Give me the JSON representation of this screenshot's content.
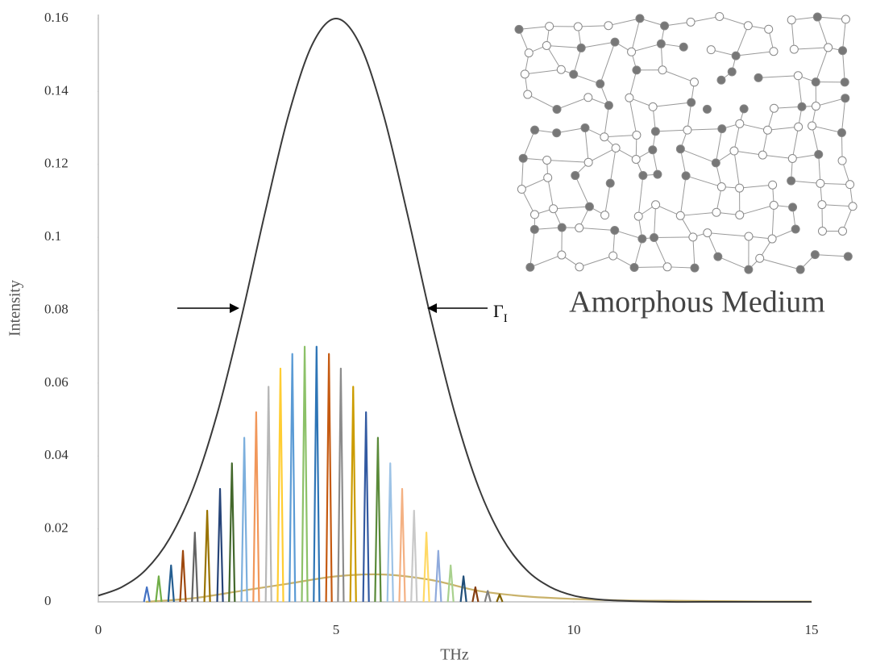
{
  "chart_data": {
    "type": "line",
    "x_label": "THz",
    "y_label": "Intensity",
    "xlim": [
      0,
      15
    ],
    "ylim": [
      0,
      0.16
    ],
    "xticks": [
      0,
      5,
      10,
      15
    ],
    "yticks": [
      0,
      0.02,
      0.04,
      0.06,
      0.08,
      0.1,
      0.12,
      0.14,
      0.16
    ],
    "grid": false,
    "annotation_label": "Γ",
    "annotation_subscript": "I",
    "inset_label": "Amorphous Medium",
    "series": [
      {
        "color": "#3a3a3a",
        "smooth": true,
        "x": [
          0,
          0.5,
          1,
          1.5,
          2,
          2.5,
          3,
          3.5,
          4,
          4.5,
          5,
          5.5,
          6,
          6.5,
          7,
          7.5,
          8,
          8.5,
          9,
          9.5,
          10,
          10.5,
          11,
          12,
          13,
          14,
          15
        ],
        "values": [
          0.0017,
          0.0041,
          0.0088,
          0.0174,
          0.0313,
          0.0516,
          0.0775,
          0.1064,
          0.1335,
          0.1529,
          0.16,
          0.1529,
          0.1335,
          0.1064,
          0.0775,
          0.0516,
          0.0313,
          0.0174,
          0.0088,
          0.0041,
          0.0017,
          0.0007,
          0.0003,
          0,
          0,
          0,
          0
        ]
      },
      {
        "color": "#c9b26b",
        "smooth": true,
        "x": [
          1,
          2,
          3,
          4,
          5,
          6,
          7,
          8,
          9,
          10,
          11,
          12,
          13,
          14,
          15
        ],
        "values": [
          0,
          0.001,
          0.003,
          0.005,
          0.007,
          0.0075,
          0.006,
          0.003,
          0.0015,
          0.0008,
          0.0004,
          0.0003,
          0.0002,
          0.0001,
          0.0001
        ]
      },
      {
        "color": "#4472c4",
        "x": [
          0.96,
          1.02,
          1.08
        ],
        "values": [
          0,
          0.004,
          0
        ]
      },
      {
        "color": "#70ad47",
        "x": [
          1.21,
          1.27,
          1.33
        ],
        "values": [
          0,
          0.007,
          0
        ]
      },
      {
        "color": "#255e91",
        "x": [
          1.47,
          1.53,
          1.59
        ],
        "values": [
          0,
          0.01,
          0
        ]
      },
      {
        "color": "#9e480e",
        "x": [
          1.72,
          1.78,
          1.84
        ],
        "values": [
          0,
          0.014,
          0
        ]
      },
      {
        "color": "#636363",
        "x": [
          1.97,
          2.03,
          2.09
        ],
        "values": [
          0,
          0.019,
          0
        ]
      },
      {
        "color": "#997300",
        "x": [
          2.23,
          2.29,
          2.35
        ],
        "values": [
          0,
          0.025,
          0
        ]
      },
      {
        "color": "#264478",
        "x": [
          2.5,
          2.56,
          2.62
        ],
        "values": [
          0,
          0.031,
          0
        ]
      },
      {
        "color": "#43682b",
        "x": [
          2.75,
          2.81,
          2.87
        ],
        "values": [
          0,
          0.038,
          0
        ]
      },
      {
        "color": "#7cafdd",
        "x": [
          3.01,
          3.07,
          3.13
        ],
        "values": [
          0,
          0.045,
          0
        ]
      },
      {
        "color": "#f1975a",
        "x": [
          3.26,
          3.32,
          3.38
        ],
        "values": [
          0,
          0.052,
          0
        ]
      },
      {
        "color": "#b7b7b7",
        "x": [
          3.52,
          3.58,
          3.64
        ],
        "values": [
          0,
          0.059,
          0
        ]
      },
      {
        "color": "#ffcd33",
        "x": [
          3.77,
          3.83,
          3.89
        ],
        "values": [
          0,
          0.064,
          0
        ]
      },
      {
        "color": "#5b9bd5",
        "x": [
          4.02,
          4.08,
          4.14
        ],
        "values": [
          0,
          0.068,
          0
        ]
      },
      {
        "color": "#8cc168",
        "x": [
          4.28,
          4.34,
          4.4
        ],
        "values": [
          0,
          0.07,
          0
        ]
      },
      {
        "color": "#2e75b6",
        "x": [
          4.53,
          4.59,
          4.65
        ],
        "values": [
          0,
          0.07,
          0
        ]
      },
      {
        "color": "#c55a11",
        "x": [
          4.79,
          4.85,
          4.91
        ],
        "values": [
          0,
          0.068,
          0
        ]
      },
      {
        "color": "#8c8c8c",
        "x": [
          5.04,
          5.1,
          5.16
        ],
        "values": [
          0,
          0.064,
          0
        ]
      },
      {
        "color": "#cc9c00",
        "x": [
          5.3,
          5.36,
          5.42
        ],
        "values": [
          0,
          0.059,
          0
        ]
      },
      {
        "color": "#335aa1",
        "x": [
          5.57,
          5.63,
          5.69
        ],
        "values": [
          0,
          0.052,
          0
        ]
      },
      {
        "color": "#5a8a39",
        "x": [
          5.82,
          5.88,
          5.94
        ],
        "values": [
          0,
          0.045,
          0
        ]
      },
      {
        "color": "#9dc3e6",
        "x": [
          6.08,
          6.14,
          6.2
        ],
        "values": [
          0,
          0.038,
          0
        ]
      },
      {
        "color": "#f4b183",
        "x": [
          6.33,
          6.39,
          6.45
        ],
        "values": [
          0,
          0.031,
          0
        ]
      },
      {
        "color": "#c9c9c9",
        "x": [
          6.58,
          6.64,
          6.7
        ],
        "values": [
          0,
          0.025,
          0
        ]
      },
      {
        "color": "#ffd966",
        "x": [
          6.84,
          6.9,
          6.96
        ],
        "values": [
          0,
          0.019,
          0
        ]
      },
      {
        "color": "#8faadc",
        "x": [
          7.09,
          7.15,
          7.21
        ],
        "values": [
          0,
          0.014,
          0
        ]
      },
      {
        "color": "#a9d18e",
        "x": [
          7.35,
          7.41,
          7.47
        ],
        "values": [
          0,
          0.01,
          0
        ]
      },
      {
        "color": "#1f4e79",
        "x": [
          7.62,
          7.68,
          7.74
        ],
        "values": [
          0,
          0.007,
          0
        ]
      },
      {
        "color": "#843c0c",
        "x": [
          7.87,
          7.93,
          7.99
        ],
        "values": [
          0,
          0.004,
          0
        ]
      },
      {
        "color": "#7f7f7f",
        "x": [
          8.13,
          8.19,
          8.25
        ],
        "values": [
          0,
          0.003,
          0
        ]
      },
      {
        "color": "#7f6000",
        "x": [
          8.38,
          8.44,
          8.5
        ],
        "values": [
          0,
          0.002,
          0
        ]
      }
    ]
  }
}
